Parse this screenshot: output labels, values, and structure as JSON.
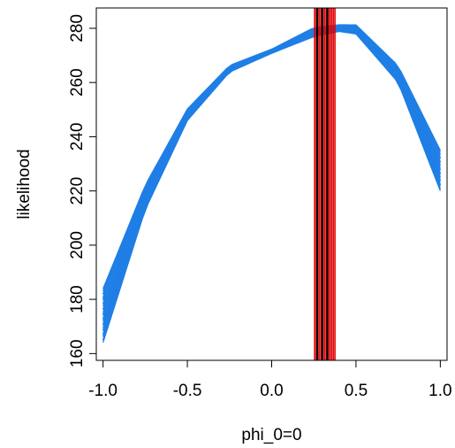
{
  "chart_data": {
    "type": "line",
    "title": "",
    "xlabel": "phi_0=0",
    "ylabel": "likelihood",
    "xlim": [
      -1.04,
      1.04
    ],
    "ylim": [
      157.5,
      287.5
    ],
    "x_ticks": [
      -1.0,
      -0.5,
      0.0,
      0.5,
      1.0
    ],
    "x_tick_labels": [
      "-1.0",
      "-0.5",
      "0.0",
      "0.5",
      "1.0"
    ],
    "y_ticks": [
      160,
      180,
      200,
      220,
      240,
      260,
      280
    ],
    "y_tick_labels": [
      "160",
      "180",
      "200",
      "220",
      "240",
      "260",
      "280"
    ],
    "grid": false,
    "legend": "none",
    "curve_family": {
      "description_color": "#1f7fe6",
      "count": 40,
      "x": [
        -1.0,
        -0.75,
        -0.5,
        -0.25,
        0.0,
        0.25,
        0.4,
        0.5,
        0.75,
        1.0
      ],
      "lower_envelope": [
        164,
        213,
        246,
        264,
        271,
        277,
        279,
        278,
        260,
        220
      ],
      "upper_envelope": [
        184,
        222,
        250,
        266,
        272,
        280,
        281,
        281,
        266,
        235
      ]
    },
    "vertical_lines": {
      "color": "#e00000",
      "x": [
        0.255,
        0.265,
        0.275,
        0.285,
        0.295,
        0.305,
        0.315,
        0.325,
        0.335,
        0.345,
        0.355,
        0.365,
        0.375
      ],
      "emphasized_color": "#000000",
      "emphasized_x": [
        0.27,
        0.3,
        0.33
      ]
    }
  }
}
